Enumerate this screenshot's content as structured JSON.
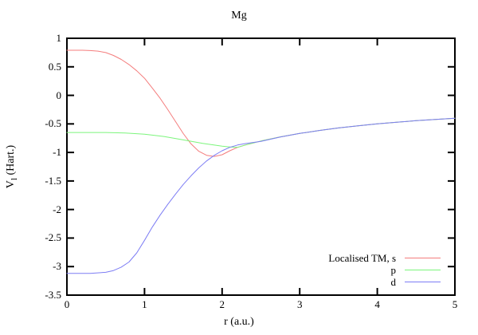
{
  "chart_data": {
    "type": "line",
    "title": "Mg",
    "xlabel": "r (a.u.)",
    "ylabel": "V_l (Hart.)",
    "ylabel_parts": {
      "main": "V",
      "sub": "l",
      "rest": " (Hart.)"
    },
    "xlim": [
      0,
      5
    ],
    "ylim": [
      -3.5,
      1
    ],
    "xticks": [
      0,
      1,
      2,
      3,
      4,
      5
    ],
    "yticks": [
      1,
      0.5,
      0,
      -0.5,
      -1,
      -1.5,
      -2,
      -2.5,
      -3,
      -3.5
    ],
    "grid": false,
    "legend_position": "bottom-right",
    "frame_color": "#000000",
    "series": [
      {
        "id": "s",
        "name": "Localised TM, s",
        "color": "#f47d7d",
        "points": [
          [
            0,
            0.79
          ],
          [
            0.1,
            0.79
          ],
          [
            0.2,
            0.79
          ],
          [
            0.3,
            0.785
          ],
          [
            0.4,
            0.775
          ],
          [
            0.5,
            0.75
          ],
          [
            0.6,
            0.7
          ],
          [
            0.7,
            0.63
          ],
          [
            0.8,
            0.54
          ],
          [
            0.9,
            0.43
          ],
          [
            1.0,
            0.3
          ],
          [
            1.1,
            0.13
          ],
          [
            1.2,
            -0.05
          ],
          [
            1.3,
            -0.25
          ],
          [
            1.4,
            -0.46
          ],
          [
            1.5,
            -0.67
          ],
          [
            1.6,
            -0.85
          ],
          [
            1.7,
            -0.98
          ],
          [
            1.8,
            -1.05
          ],
          [
            1.9,
            -1.07
          ],
          [
            2.0,
            -1.04
          ],
          [
            2.1,
            -0.97
          ],
          [
            2.2,
            -0.91
          ],
          [
            2.3,
            -0.87
          ],
          [
            2.4,
            -0.835
          ],
          [
            2.5,
            -0.8
          ],
          [
            2.75,
            -0.727
          ],
          [
            3.0,
            -0.667
          ],
          [
            3.25,
            -0.615
          ],
          [
            3.5,
            -0.571
          ],
          [
            3.75,
            -0.533
          ],
          [
            4.0,
            -0.5
          ],
          [
            4.25,
            -0.471
          ],
          [
            4.5,
            -0.444
          ],
          [
            4.75,
            -0.421
          ],
          [
            5.0,
            -0.4
          ]
        ]
      },
      {
        "id": "p",
        "name": "p",
        "color": "#7cf57c",
        "points": [
          [
            0,
            -0.65
          ],
          [
            0.25,
            -0.65
          ],
          [
            0.5,
            -0.65
          ],
          [
            0.75,
            -0.66
          ],
          [
            1.0,
            -0.68
          ],
          [
            1.25,
            -0.72
          ],
          [
            1.5,
            -0.78
          ],
          [
            1.75,
            -0.84
          ],
          [
            2.0,
            -0.89
          ],
          [
            2.1,
            -0.905
          ],
          [
            2.2,
            -0.91
          ],
          [
            2.3,
            -0.87
          ],
          [
            2.4,
            -0.835
          ],
          [
            2.5,
            -0.8
          ],
          [
            2.75,
            -0.727
          ],
          [
            3.0,
            -0.667
          ],
          [
            3.25,
            -0.615
          ],
          [
            3.5,
            -0.571
          ],
          [
            3.75,
            -0.533
          ],
          [
            4.0,
            -0.5
          ],
          [
            4.25,
            -0.471
          ],
          [
            4.5,
            -0.444
          ],
          [
            4.75,
            -0.421
          ],
          [
            5.0,
            -0.4
          ]
        ]
      },
      {
        "id": "d",
        "name": "d",
        "color": "#7d7df4",
        "points": [
          [
            0,
            -3.12
          ],
          [
            0.3,
            -3.12
          ],
          [
            0.5,
            -3.1
          ],
          [
            0.6,
            -3.07
          ],
          [
            0.7,
            -3.01
          ],
          [
            0.8,
            -2.92
          ],
          [
            0.9,
            -2.76
          ],
          [
            1.0,
            -2.54
          ],
          [
            1.1,
            -2.31
          ],
          [
            1.2,
            -2.1
          ],
          [
            1.3,
            -1.91
          ],
          [
            1.4,
            -1.73
          ],
          [
            1.5,
            -1.56
          ],
          [
            1.6,
            -1.41
          ],
          [
            1.7,
            -1.27
          ],
          [
            1.8,
            -1.15
          ],
          [
            1.9,
            -1.05
          ],
          [
            2.0,
            -0.97
          ],
          [
            2.1,
            -0.91
          ],
          [
            2.2,
            -0.87
          ],
          [
            2.3,
            -0.845
          ],
          [
            2.4,
            -0.825
          ],
          [
            2.5,
            -0.805
          ],
          [
            2.75,
            -0.73
          ],
          [
            3.0,
            -0.667
          ],
          [
            3.25,
            -0.615
          ],
          [
            3.5,
            -0.571
          ],
          [
            3.75,
            -0.533
          ],
          [
            4.0,
            -0.5
          ],
          [
            4.25,
            -0.471
          ],
          [
            4.5,
            -0.444
          ],
          [
            4.75,
            -0.421
          ],
          [
            5.0,
            -0.4
          ]
        ]
      }
    ]
  }
}
